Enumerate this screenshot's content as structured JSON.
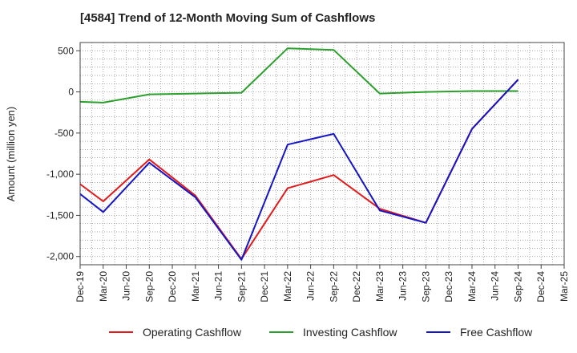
{
  "chart_data": {
    "type": "line",
    "title": "[4584]  Trend of 12-Month Moving Sum of Cashflows",
    "xlabel": "",
    "ylabel": "Amount (million yen)",
    "categories": [
      "Dec-19",
      "Mar-20",
      "Jun-20",
      "Sep-20",
      "Dec-20",
      "Mar-21",
      "Jun-21",
      "Sep-21",
      "Dec-21",
      "Mar-22",
      "Jun-22",
      "Sep-22",
      "Dec-22",
      "Mar-23",
      "Jun-23",
      "Sep-23",
      "Dec-23",
      "Mar-24",
      "Jun-24",
      "Sep-24",
      "Dec-24",
      "Mar-25"
    ],
    "yticks": [
      500,
      0,
      -500,
      -1000,
      -1500,
      -2000
    ],
    "ytick_labels": [
      "500",
      "0",
      "-500",
      "-1,000",
      "-1,500",
      "-2,000"
    ],
    "ylim": [
      -2100,
      600
    ],
    "grid": true,
    "legend_position": "bottom",
    "series": [
      {
        "name": "Operating Cashflow",
        "color": "#e31a1c",
        "values": [
          -1120,
          -1330,
          null,
          -820,
          null,
          -1260,
          null,
          -2030,
          null,
          -1170,
          null,
          -1010,
          null,
          -1420,
          null,
          -1590,
          null,
          -450,
          null,
          150,
          null,
          null
        ]
      },
      {
        "name": "Investing Cashflow",
        "color": "#2ca02c",
        "values": [
          -120,
          -130,
          null,
          -30,
          null,
          -20,
          null,
          -10,
          null,
          530,
          null,
          510,
          null,
          -20,
          null,
          0,
          null,
          10,
          null,
          10,
          null,
          null
        ]
      },
      {
        "name": "Free Cashflow",
        "color": "#1515c8",
        "values": [
          -1240,
          -1460,
          null,
          -860,
          null,
          -1280,
          null,
          -2040,
          null,
          -640,
          null,
          -510,
          null,
          -1440,
          null,
          -1590,
          null,
          -450,
          null,
          150,
          null,
          null
        ]
      }
    ]
  }
}
